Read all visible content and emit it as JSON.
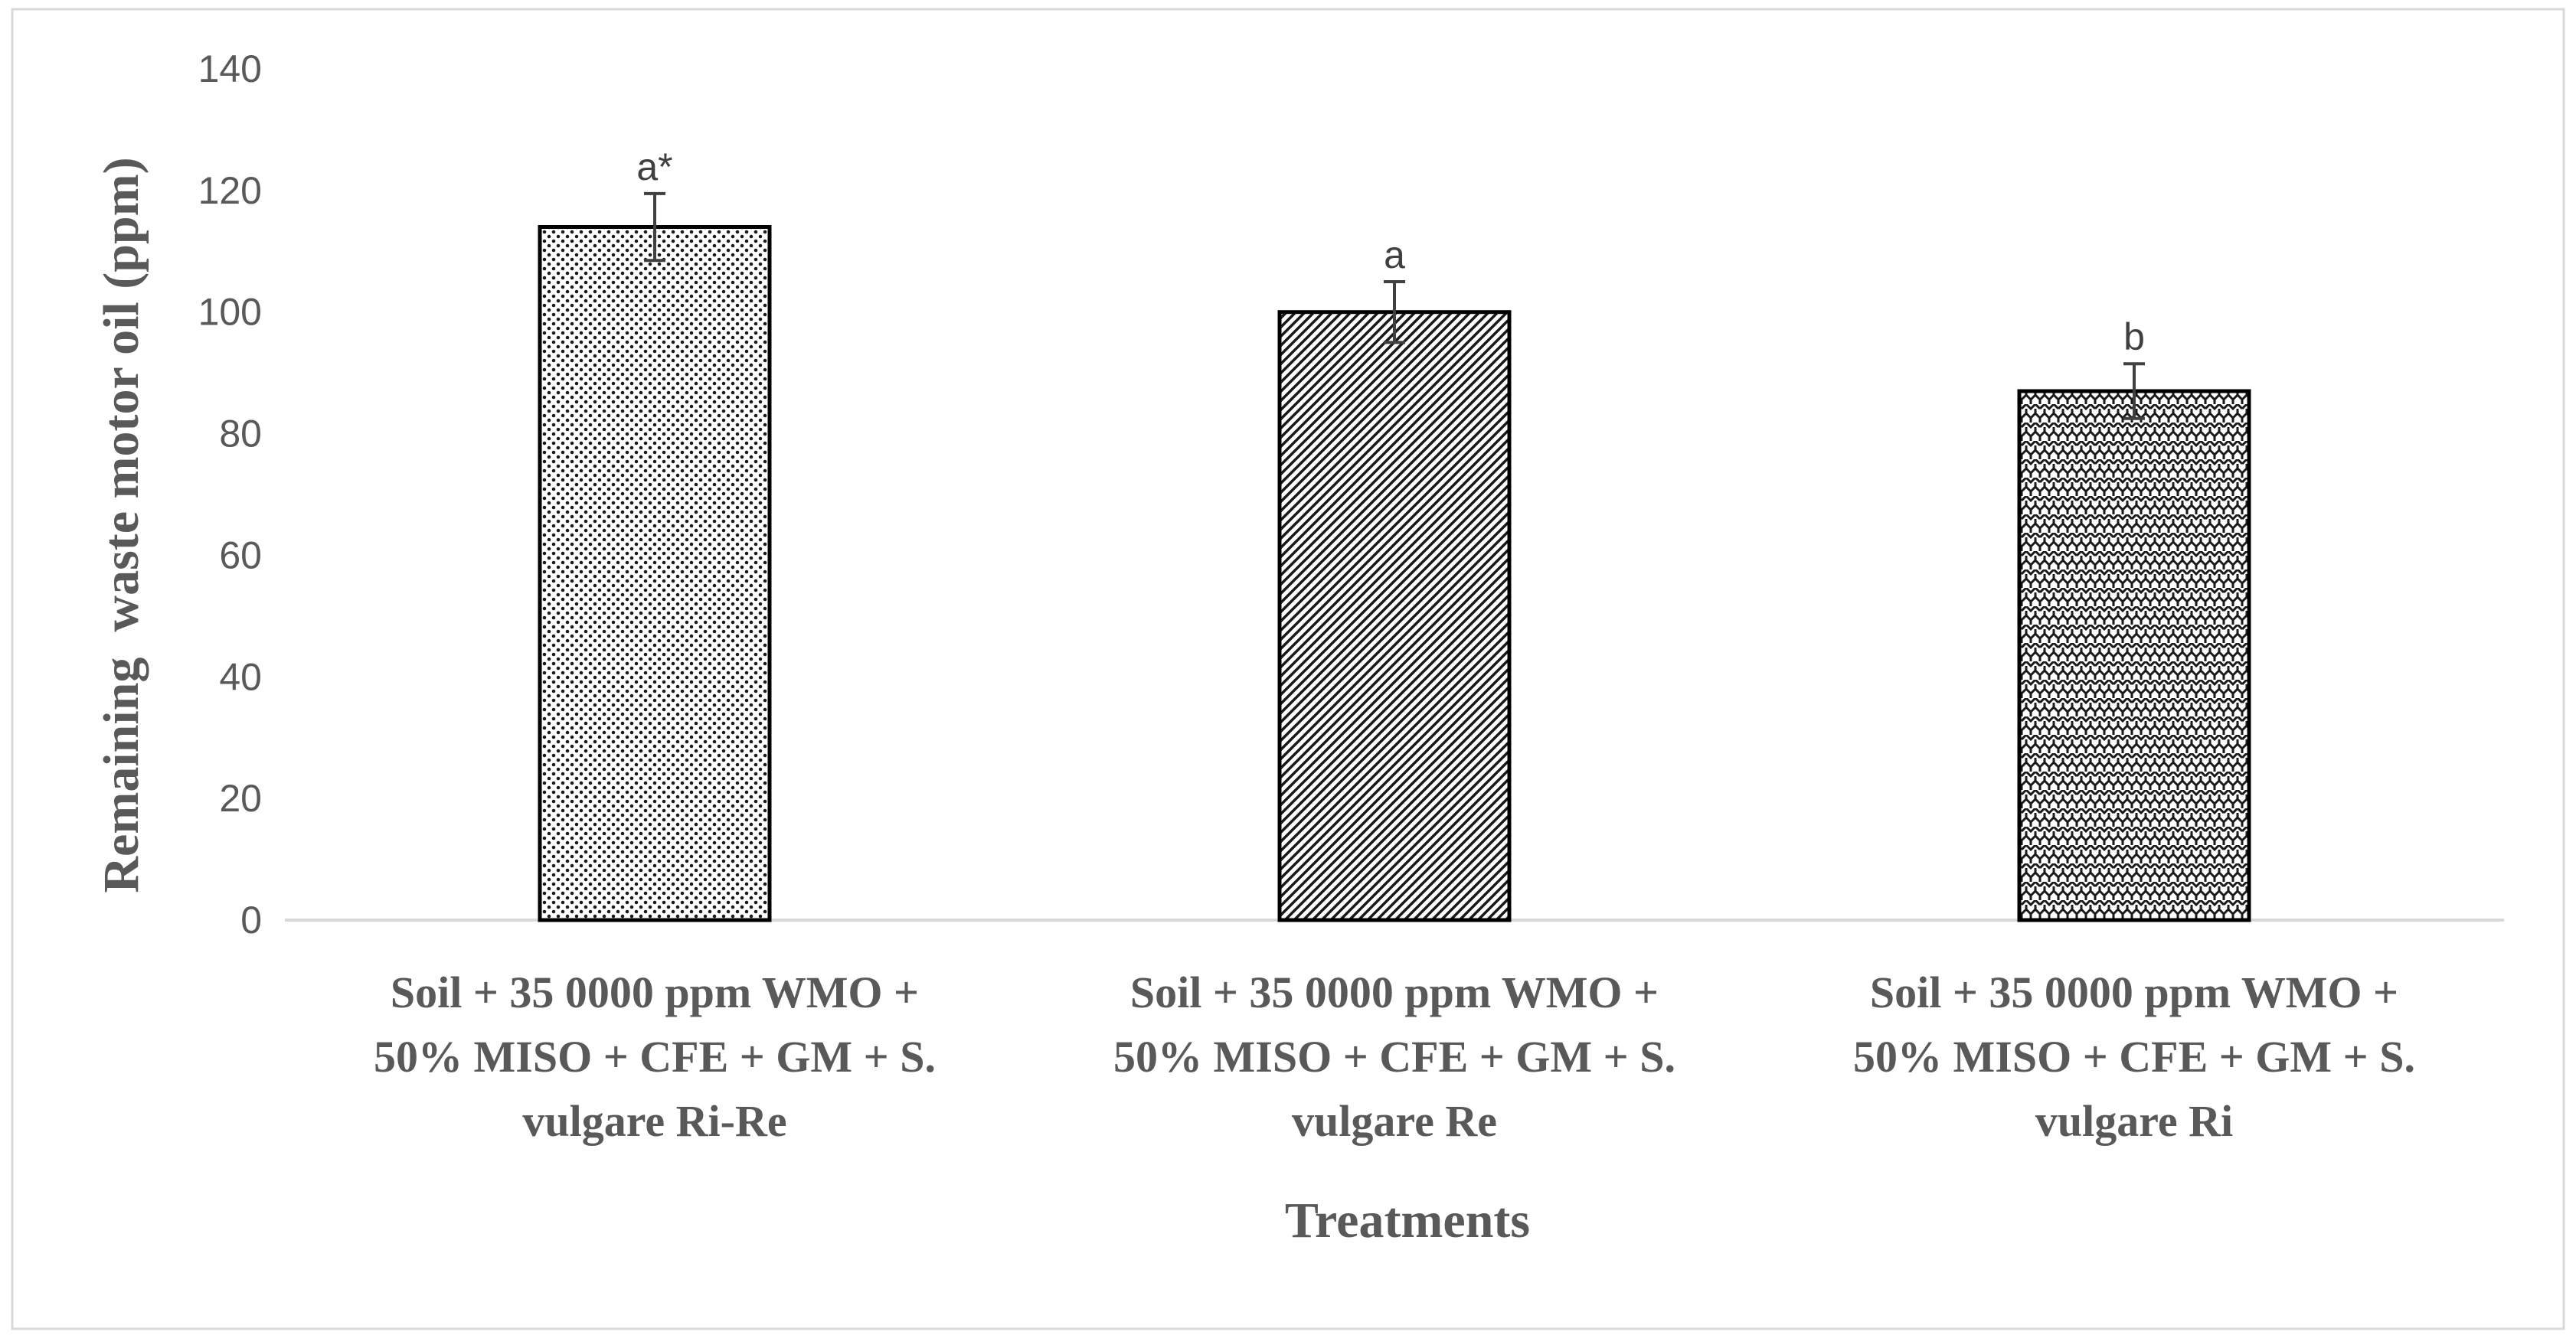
{
  "chart_data": {
    "type": "bar",
    "title": "",
    "xlabel": "Treatments",
    "ylabel": "Remaining  waste motor oil (ppm)",
    "ylim": [
      0,
      140
    ],
    "yticks": [
      0,
      20,
      40,
      60,
      80,
      100,
      120,
      140
    ],
    "grid": false,
    "categories": [
      [
        "Soil + 35 0000 ppm WMO +",
        "50% MISO + CFE + GM + S.",
        "vulgare Ri-Re"
      ],
      [
        "Soil + 35 0000 ppm WMO +",
        "50% MISO + CFE + GM + S.",
        "vulgare Re"
      ],
      [
        "Soil + 35 0000 ppm WMO +",
        "50% MISO + CFE + GM + S.",
        "vulgare Ri"
      ]
    ],
    "values": [
      114,
      100,
      87
    ],
    "errors": [
      5.5,
      5,
      4.5
    ],
    "significance_labels": [
      "a*",
      "a",
      "b"
    ],
    "patterns": [
      "dots",
      "diagonal",
      "weave"
    ],
    "colors": {
      "bar_outline": "#000000",
      "pattern": "#1a1a1a",
      "axis": "#d9d9d9",
      "frame": "#d9d9d9",
      "text": "#595959"
    }
  }
}
